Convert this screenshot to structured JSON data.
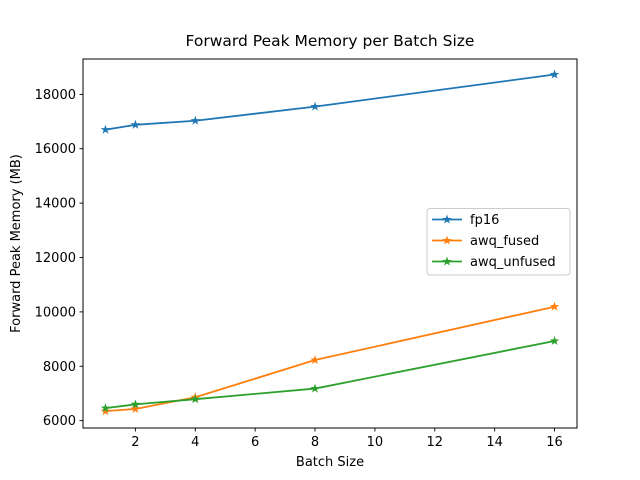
{
  "figure": {
    "title": "Forward Peak Memory per Batch Size"
  },
  "chart_data": {
    "type": "line",
    "title": "Forward Peak Memory per Batch Size",
    "xlabel": "Batch Size",
    "ylabel": "Forward Peak Memory (MB)",
    "x": [
      1,
      2,
      4,
      8,
      16
    ],
    "series": [
      {
        "name": "fp16",
        "color": "#1f77b4",
        "marker": "star",
        "values": [
          16700,
          16880,
          17030,
          17550,
          18730
        ]
      },
      {
        "name": "awq_fused",
        "color": "#ff7f0e",
        "marker": "star",
        "values": [
          6350,
          6430,
          6860,
          8230,
          10190
        ]
      },
      {
        "name": "awq_unfused",
        "color": "#2ca02c",
        "marker": "star",
        "values": [
          6460,
          6600,
          6790,
          7180,
          8930
        ]
      }
    ],
    "xticks": [
      2,
      4,
      6,
      8,
      10,
      12,
      14,
      16
    ],
    "yticks": [
      6000,
      8000,
      10000,
      12000,
      14000,
      16000,
      18000
    ],
    "xlim": [
      0.25,
      16.75
    ],
    "ylim": [
      5730,
      19300
    ],
    "grid": false,
    "legend": {
      "entries": [
        "fp16",
        "awq_fused",
        "awq_unfused"
      ],
      "position": "center-right",
      "border_color": "#cccccc",
      "background": "#ffffff"
    },
    "colors": {
      "axes": "#000000",
      "text": "#000000",
      "background": "#ffffff"
    }
  }
}
